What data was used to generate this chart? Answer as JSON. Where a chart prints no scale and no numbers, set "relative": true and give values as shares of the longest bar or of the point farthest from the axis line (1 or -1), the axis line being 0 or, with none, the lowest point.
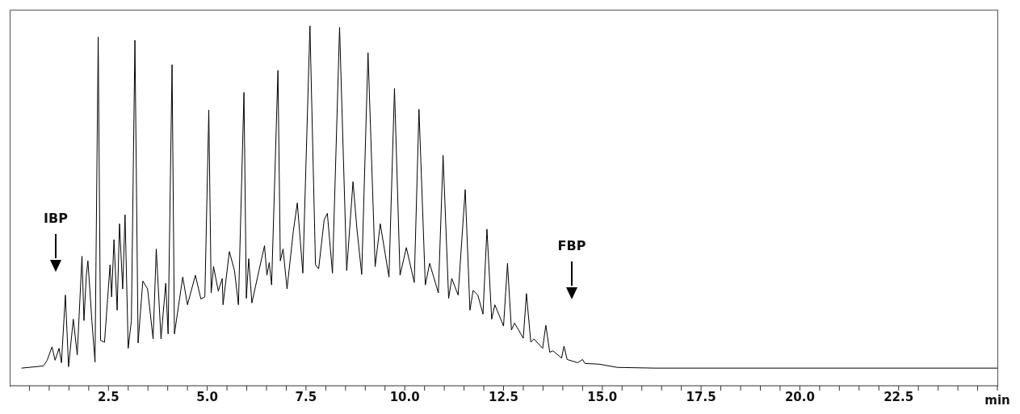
{
  "chart_data": {
    "type": "line",
    "relative": true,
    "xlabel": "min",
    "color": "#000000",
    "marker": "none",
    "line_style": "solid",
    "grid": false,
    "legend": false,
    "xlim": [
      0,
      25
    ],
    "xticks": [
      {
        "value": 0.5,
        "label": null
      },
      {
        "value": 1,
        "label": null
      },
      {
        "value": 1.5,
        "label": null
      },
      {
        "value": 2,
        "label": null
      },
      2.5,
      {
        "value": 3,
        "label": null
      },
      {
        "value": 3.5,
        "label": null
      },
      {
        "value": 4,
        "label": null
      },
      {
        "value": 4.5,
        "label": null
      },
      {
        "value": 5,
        "label": "5.0"
      },
      {
        "value": 5.5,
        "label": null
      },
      {
        "value": 6,
        "label": null
      },
      {
        "value": 6.5,
        "label": null
      },
      {
        "value": 7,
        "label": null
      },
      7.5,
      {
        "value": 8,
        "label": null
      },
      {
        "value": 8.5,
        "label": null
      },
      {
        "value": 9,
        "label": null
      },
      {
        "value": 9.5,
        "label": null
      },
      {
        "value": 10,
        "label": "10.0"
      },
      {
        "value": 10.5,
        "label": null
      },
      {
        "value": 11,
        "label": null
      },
      {
        "value": 11.5,
        "label": null
      },
      {
        "value": 12,
        "label": null
      },
      12.5,
      {
        "value": 13,
        "label": null
      },
      {
        "value": 13.5,
        "label": null
      },
      {
        "value": 14,
        "label": null
      },
      {
        "value": 14.5,
        "label": null
      },
      {
        "value": 15,
        "label": "15.0"
      },
      {
        "value": 15.5,
        "label": null
      },
      {
        "value": 16,
        "label": null
      },
      {
        "value": 16.5,
        "label": null
      },
      {
        "value": 17,
        "label": null
      },
      17.5,
      {
        "value": 18,
        "label": null
      },
      {
        "value": 18.5,
        "label": null
      },
      {
        "value": 19,
        "label": null
      },
      {
        "value": 19.5,
        "label": null
      },
      {
        "value": 20,
        "label": "20.0"
      },
      {
        "value": 20.5,
        "label": null
      },
      {
        "value": 21,
        "label": null
      },
      {
        "value": 21.5,
        "label": null
      },
      {
        "value": 22,
        "label": null
      },
      22.5,
      {
        "value": 23,
        "label": null
      },
      {
        "value": 23.5,
        "label": null
      },
      {
        "value": 24,
        "label": null
      },
      {
        "value": 24.5,
        "label": null
      },
      {
        "value": 25,
        "label": null
      }
    ],
    "x": [
      0.3,
      0.85,
      0.95,
      1.07,
      1.15,
      1.25,
      1.31,
      1.41,
      1.49,
      1.61,
      1.71,
      1.83,
      1.88,
      1.94,
      1.98,
      2.08,
      2.16,
      2.24,
      2.3,
      2.4,
      2.54,
      2.58,
      2.64,
      2.72,
      2.78,
      2.86,
      2.92,
      3.0,
      3.08,
      3.17,
      3.25,
      3.37,
      3.49,
      3.63,
      3.71,
      3.83,
      3.95,
      4.01,
      4.11,
      4.17,
      4.38,
      4.5,
      4.7,
      4.84,
      4.94,
      5.04,
      5.1,
      5.16,
      5.28,
      5.38,
      5.4,
      5.56,
      5.69,
      5.79,
      5.93,
      5.99,
      6.05,
      6.13,
      6.31,
      6.45,
      6.51,
      6.57,
      6.63,
      6.79,
      6.85,
      6.92,
      7.02,
      7.18,
      7.28,
      7.42,
      7.6,
      7.74,
      7.82,
      7.96,
      8.04,
      8.17,
      8.35,
      8.53,
      8.69,
      8.79,
      8.91,
      9.07,
      9.25,
      9.38,
      9.6,
      9.74,
      9.88,
      10.04,
      10.24,
      10.36,
      10.52,
      10.63,
      10.85,
      10.97,
      11.11,
      11.19,
      11.35,
      11.53,
      11.65,
      11.73,
      11.85,
      11.98,
      12.08,
      12.2,
      12.28,
      12.5,
      12.6,
      12.7,
      12.78,
      13.0,
      13.08,
      13.19,
      13.27,
      13.49,
      13.57,
      13.67,
      13.75,
      13.97,
      14.03,
      14.11,
      14.38,
      14.5,
      14.56,
      14.92,
      15.38,
      16.33,
      25
    ],
    "values": [
      0.049,
      0.055,
      0.071,
      0.108,
      0.071,
      0.104,
      0.064,
      0.252,
      0.053,
      0.185,
      0.086,
      0.36,
      0.181,
      0.307,
      0.347,
      0.181,
      0.066,
      0.969,
      0.126,
      0.121,
      0.336,
      0.247,
      0.406,
      0.21,
      0.45,
      0.269,
      0.475,
      0.104,
      0.181,
      0.96,
      0.119,
      0.291,
      0.269,
      0.13,
      0.38,
      0.13,
      0.285,
      0.144,
      0.892,
      0.144,
      0.302,
      0.225,
      0.307,
      0.241,
      0.247,
      0.766,
      0.258,
      0.331,
      0.263,
      0.298,
      0.225,
      0.373,
      0.32,
      0.225,
      0.815,
      0.243,
      0.353,
      0.23,
      0.32,
      0.389,
      0.307,
      0.342,
      0.28,
      0.876,
      0.347,
      0.38,
      0.269,
      0.43,
      0.508,
      0.313,
      1,
      0.336,
      0.325,
      0.461,
      0.479,
      0.313,
      0.996,
      0.32,
      0.567,
      0.435,
      0.309,
      0.925,
      0.331,
      0.45,
      0.302,
      0.826,
      0.307,
      0.384,
      0.287,
      0.768,
      0.28,
      0.34,
      0.258,
      0.64,
      0.243,
      0.298,
      0.252,
      0.545,
      0.21,
      0.265,
      0.252,
      0.199,
      0.435,
      0.185,
      0.225,
      0.166,
      0.34,
      0.155,
      0.174,
      0.132,
      0.256,
      0.121,
      0.13,
      0.104,
      0.168,
      0.093,
      0.097,
      0.077,
      0.11,
      0.073,
      0.064,
      0.073,
      0.062,
      0.06,
      0.051,
      0.049,
      0.049
    ],
    "annotations": [
      "IBP",
      "FBP"
    ]
  }
}
